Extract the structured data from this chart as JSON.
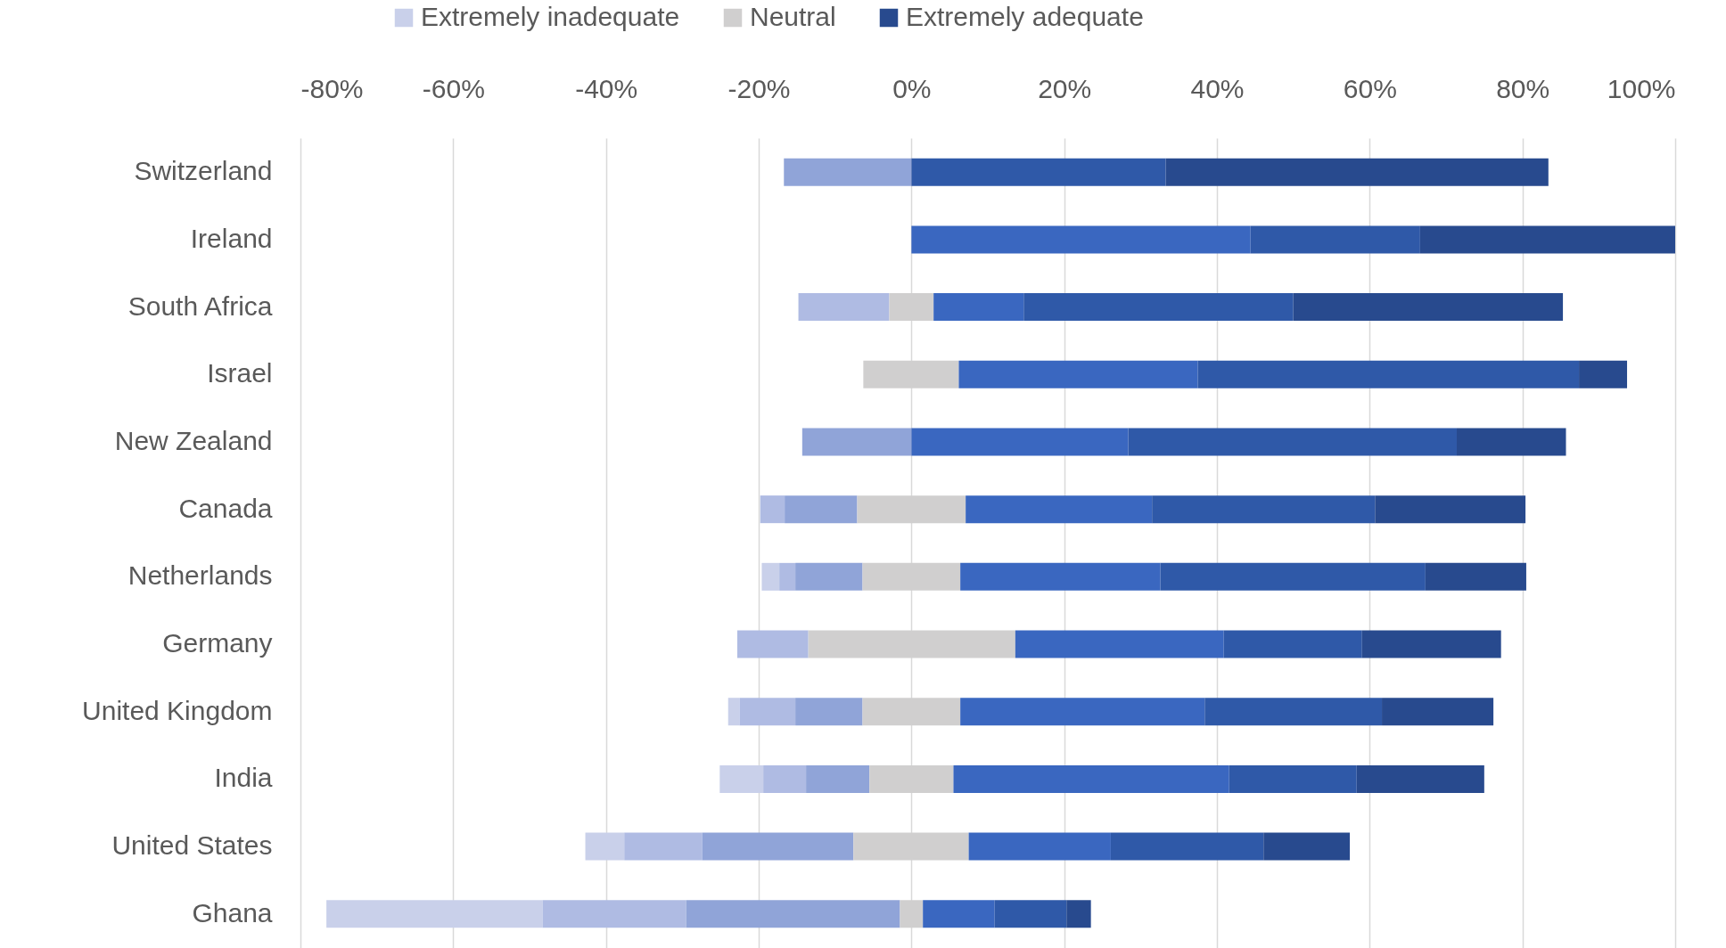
{
  "chart_data": {
    "type": "bar",
    "orientation": "horizontal",
    "categories": [
      "Switzerland",
      "Ireland",
      "South Africa",
      "Israel",
      "New Zealand",
      "Canada",
      "Netherlands",
      "Germany",
      "United Kingdom",
      "India",
      "United States",
      "Ghana"
    ],
    "xlim": [
      -80,
      100
    ],
    "xticks": [
      {
        "value": -80,
        "label": "-80%"
      },
      {
        "value": -60,
        "label": "-60%"
      },
      {
        "value": -40,
        "label": "-40%"
      },
      {
        "value": -20,
        "label": "-20%"
      },
      {
        "value": 0,
        "label": "0%"
      },
      {
        "value": 20,
        "label": "20%"
      },
      {
        "value": 40,
        "label": "40%"
      },
      {
        "value": 60,
        "label": "60%"
      },
      {
        "value": 80,
        "label": "80%"
      },
      {
        "value": 100,
        "label": "100%"
      }
    ],
    "grid": "x",
    "legend": "top",
    "series": [
      {
        "name": "Extremely inadequate",
        "color": "#c9d0ea",
        "values": [
          null,
          null,
          null,
          null,
          null,
          null,
          2.3,
          null,
          1.5,
          5.7,
          5.1,
          28.3
        ],
        "base": [
          null,
          null,
          null,
          null,
          null,
          null,
          -19.6,
          null,
          -24.0,
          -25.1,
          -42.7,
          -76.6
        ]
      },
      {
        "color": "#afbbe3",
        "values": [
          null,
          null,
          11.9,
          null,
          null,
          3.2,
          2.1,
          9.3,
          7.3,
          5.6,
          10.2,
          18.8
        ],
        "base": [
          null,
          null,
          -14.8,
          null,
          null,
          -19.8,
          -17.3,
          -22.8,
          -22.5,
          -19.4,
          -37.6,
          -48.3
        ]
      },
      {
        "color": "#90a4d8",
        "values": [
          16.7,
          null,
          null,
          null,
          14.3,
          9.5,
          8.8,
          null,
          8.8,
          8.3,
          19.8,
          28.0
        ],
        "base": [
          -16.7,
          null,
          null,
          null,
          -14.3,
          -16.6,
          -15.2,
          null,
          -15.2,
          -13.8,
          -27.4,
          -29.5
        ]
      },
      {
        "name": "Neutral",
        "color": "#d0cfcf",
        "values": [
          null,
          null,
          5.8,
          12.5,
          null,
          14.2,
          12.8,
          27.1,
          12.8,
          11.0,
          15.1,
          3.0
        ],
        "base": [
          null,
          null,
          -2.9,
          -6.3,
          null,
          -7.1,
          -6.4,
          -13.5,
          -6.4,
          -5.5,
          -7.6,
          -1.5
        ]
      },
      {
        "color": "#3a67c0",
        "values": [
          null,
          44.4,
          11.8,
          31.3,
          28.4,
          24.4,
          26.2,
          27.3,
          32.0,
          36.1,
          18.6,
          9.4
        ],
        "base": [
          null,
          0,
          2.9,
          6.2,
          0,
          7.1,
          6.4,
          13.6,
          6.4,
          5.5,
          7.5,
          1.5
        ]
      },
      {
        "color": "#2f59a8",
        "values": [
          33.3,
          22.2,
          35.3,
          49.9,
          43.0,
          29.2,
          34.7,
          18.1,
          23.2,
          16.7,
          20.0,
          9.4
        ],
        "base": [
          0,
          44.4,
          14.7,
          37.5,
          28.4,
          31.5,
          32.6,
          40.9,
          38.4,
          41.6,
          26.1,
          10.9
        ]
      },
      {
        "name": "Extremely adequate",
        "color": "#284a8e",
        "values": [
          50.1,
          33.4,
          35.3,
          6.3,
          14.3,
          19.7,
          13.2,
          18.2,
          14.6,
          16.7,
          11.3,
          3.2
        ],
        "base": [
          33.3,
          66.6,
          50.0,
          87.4,
          71.4,
          60.7,
          67.3,
          59.0,
          61.6,
          58.3,
          46.1,
          20.3
        ]
      }
    ]
  }
}
